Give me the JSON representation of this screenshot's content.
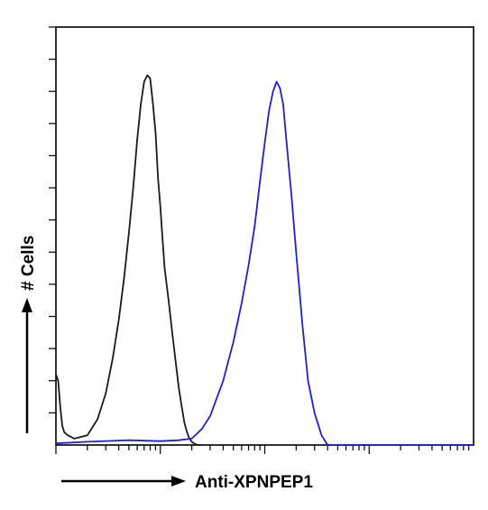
{
  "chart_data": {
    "type": "line",
    "title": "",
    "xlabel": "Anti-XPNPEP1",
    "ylabel": "# Cells",
    "xscale": "log",
    "xlim": [
      1,
      10000
    ],
    "ylim": [
      0,
      130
    ],
    "grid": false,
    "legend": "none",
    "series": [
      {
        "color": "#1a1a1a",
        "x": [
          1,
          1.05,
          1.1,
          1.15,
          1.2,
          1.3,
          1.5,
          2,
          2.5,
          3,
          3.5,
          4,
          4.5,
          5,
          5.5,
          6,
          6.5,
          7,
          7.5,
          8,
          8.5,
          9,
          9.5,
          10,
          10.5,
          11,
          12,
          13,
          14,
          15,
          16,
          17,
          18,
          19,
          20,
          21,
          22,
          23,
          24,
          25
        ],
        "y": [
          22,
          20,
          12,
          6,
          4,
          3,
          2,
          3,
          8,
          16,
          27,
          39,
          52,
          66,
          80,
          95,
          106,
          113,
          115,
          114,
          106,
          97,
          83,
          74,
          64,
          55,
          45,
          35,
          26,
          18,
          12,
          7,
          4,
          2,
          1,
          0.5,
          0.2,
          0,
          0,
          0
        ]
      },
      {
        "color": "#1f1fd8",
        "x": [
          1,
          2,
          5,
          10,
          15,
          20,
          25,
          30,
          40,
          50,
          60,
          70,
          80,
          90,
          100,
          110,
          120,
          130,
          140,
          150,
          160,
          180,
          200,
          230,
          260,
          300,
          350,
          400,
          600,
          1000,
          10000
        ],
        "y": [
          0.5,
          1,
          1.5,
          1.2,
          1.5,
          2,
          5,
          9,
          20,
          32,
          44,
          56,
          68,
          82,
          94,
          104,
          110,
          113,
          111,
          106,
          96,
          78,
          60,
          37,
          20,
          10,
          3,
          0,
          0,
          0,
          0
        ]
      }
    ]
  }
}
